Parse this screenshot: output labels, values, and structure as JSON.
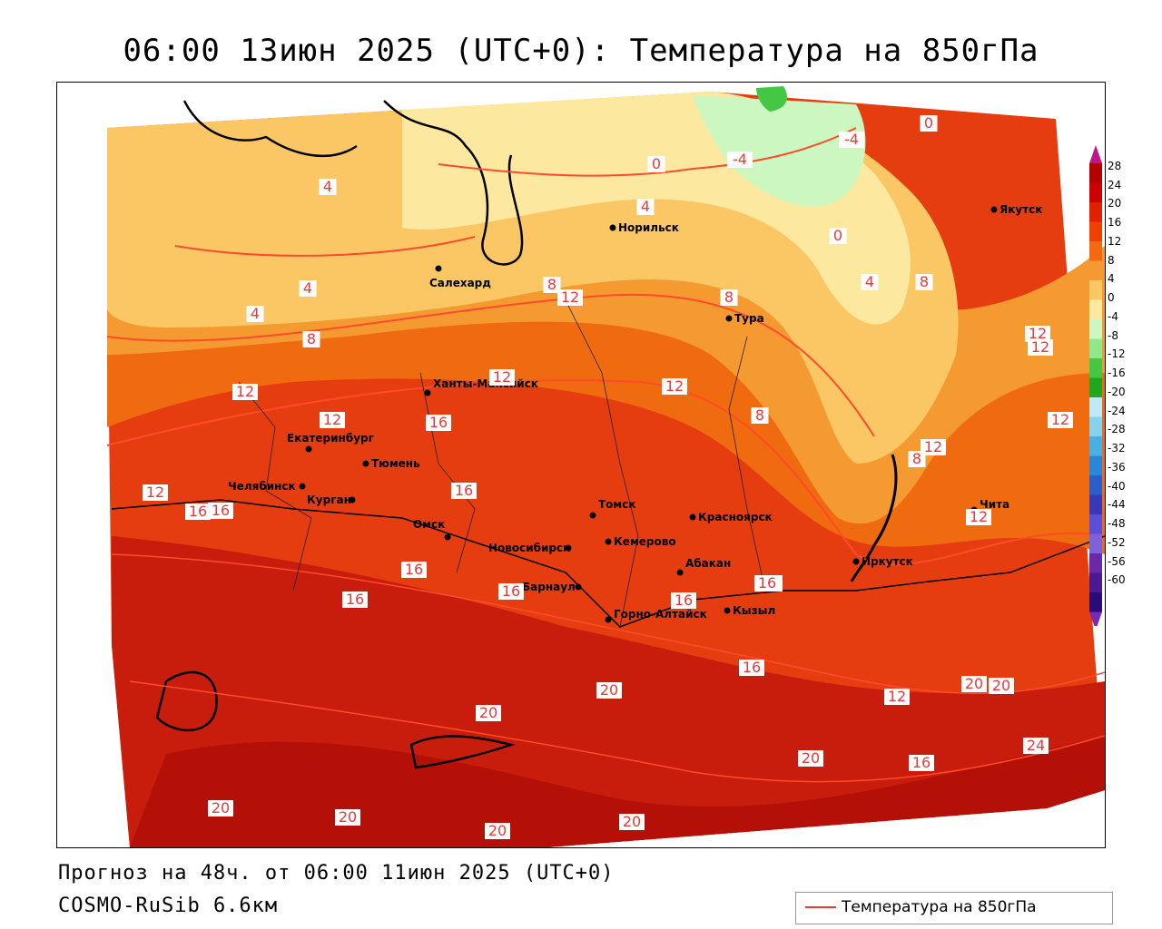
{
  "title": "06:00 13июн 2025 (UTC+0): Температура на 850гПа",
  "footer": {
    "forecast": "Прогноз на 48ч. от 06:00 11июн 2025 (UTC+0)",
    "model": "COSMO-RuSib 6.6км"
  },
  "legend": {
    "series_name": "Температура на 850гПа",
    "line_color": "#e83a3a"
  },
  "colorbar": {
    "ticks": [
      "28",
      "24",
      "20",
      "16",
      "12",
      "8",
      "4",
      "0",
      "-4",
      "-8",
      "-12",
      "-16",
      "-20",
      "-24",
      "-28",
      "-32",
      "-36",
      "-40",
      "-44",
      "-48",
      "-52",
      "-56",
      "-60"
    ],
    "colors": [
      "#b30000",
      "#cc0000",
      "#e02000",
      "#f04000",
      "#f46a10",
      "#f59a30",
      "#fbc765",
      "#fde8a0",
      "#ccf7c0",
      "#8fe88a",
      "#44c844",
      "#1fa81f",
      "#bfeaf5",
      "#86d3f0",
      "#49b0e6",
      "#2c86d8",
      "#2a5ec8",
      "#3838b8",
      "#5a4fd6",
      "#7e62d8",
      "#6a2aa8",
      "#4a1890",
      "#2a0c78"
    ]
  },
  "cities": [
    {
      "name": "Норильск"
    },
    {
      "name": "Салехард"
    },
    {
      "name": "Якутск"
    },
    {
      "name": "Тура"
    },
    {
      "name": "Ханты-Мансийск"
    },
    {
      "name": "Екатеринбург"
    },
    {
      "name": "Тюмень"
    },
    {
      "name": "Челябинск"
    },
    {
      "name": "Курган"
    },
    {
      "name": "Омск"
    },
    {
      "name": "Новосибирск"
    },
    {
      "name": "Томск"
    },
    {
      "name": "Кемерово"
    },
    {
      "name": "Красноярск"
    },
    {
      "name": "Абакан"
    },
    {
      "name": "Барнаул"
    },
    {
      "name": "Горно-Алтайск"
    },
    {
      "name": "Кызыл"
    },
    {
      "name": "Иркутск"
    },
    {
      "name": "Чита"
    }
  ],
  "isotherm_labels": [
    "4",
    "4",
    "4",
    "4",
    "4",
    "8",
    "8",
    "8",
    "8",
    "8",
    "8",
    "12",
    "12",
    "12",
    "12",
    "12",
    "12",
    "12",
    "12",
    "12",
    "12",
    "12",
    "12",
    "16",
    "16",
    "16",
    "16",
    "16",
    "16",
    "16",
    "16",
    "16",
    "20",
    "20",
    "20",
    "20",
    "20",
    "20",
    "20",
    "20",
    "20",
    "24",
    "0",
    "0",
    "0",
    "-4",
    "-4",
    "12",
    "16",
    "16"
  ]
}
